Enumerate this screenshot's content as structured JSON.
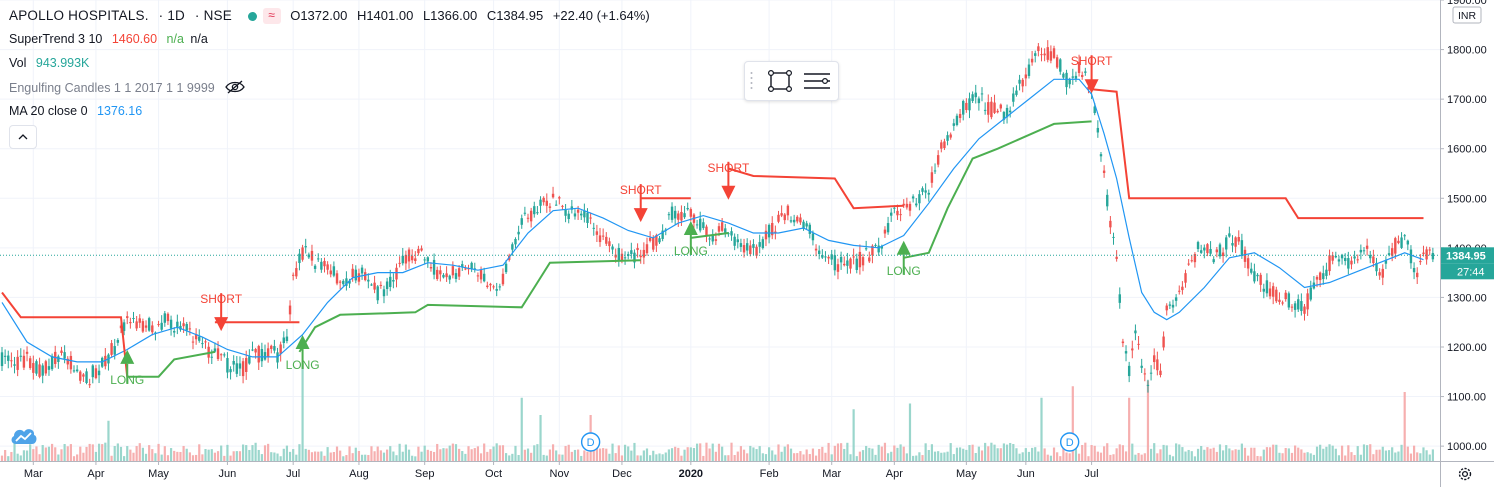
{
  "header": {
    "symbol": "APOLLO HOSPITALS.",
    "interval": "1D",
    "exchange": "NSE",
    "change_badge": "≈",
    "open": "O1372.00",
    "high": "H1401.00",
    "low": "L1366.00",
    "close": "C1384.95",
    "change": "+22.40 (+1.64%)"
  },
  "indicators": {
    "supertrend": {
      "label": "SuperTrend 3 10",
      "value": "1460.60",
      "na1": "n/a",
      "na2": "n/a"
    },
    "volume": {
      "label": "Vol",
      "value": "943.993K"
    },
    "engulfing": {
      "label": "Engulfing Candles 1 1 2017 1 1 9999"
    },
    "ma": {
      "label": "MA 20 close 0",
      "value": "1376.16"
    }
  },
  "currency": "INR",
  "price_badge": {
    "value": "1384.95",
    "countdown": "27:44"
  },
  "icons": {
    "eye": "eye-crossed-icon",
    "logo": "cloud-logo-icon",
    "settings": "gear-icon",
    "rect": "rectangle-tool-icon",
    "lines": "lines-tool-icon"
  },
  "colors": {
    "up": "#26a69a",
    "down": "#ef5350",
    "supertrend_up": "#4caf50",
    "supertrend_down": "#f44336",
    "ma": "#2196f3",
    "vol_up": "#8fd1c7",
    "vol_down": "#f5a6a6"
  },
  "chart_data": {
    "type": "candlestick",
    "title": "APOLLO HOSPITALS. · 1D · NSE",
    "ylim": [
      970,
      1900
    ],
    "y_ticks": [
      1000,
      1100,
      1200,
      1300,
      1400,
      1500,
      1600,
      1700,
      1800,
      1900
    ],
    "x_ticks": [
      "Mar",
      "Apr",
      "May",
      "Jun",
      "Jul",
      "Aug",
      "Sep",
      "Oct",
      "Nov",
      "Dec",
      "2020",
      "Feb",
      "Mar",
      "Apr",
      "May",
      "Jun",
      "Jul"
    ],
    "close_path": [
      [
        0,
        1175
      ],
      [
        4,
        1160
      ],
      [
        8,
        1175
      ],
      [
        12,
        1150
      ],
      [
        16,
        1170
      ],
      [
        20,
        1190
      ],
      [
        24,
        1150
      ],
      [
        28,
        1140
      ],
      [
        32,
        1165
      ],
      [
        36,
        1200
      ],
      [
        40,
        1260
      ],
      [
        44,
        1250
      ],
      [
        48,
        1240
      ],
      [
        52,
        1255
      ],
      [
        56,
        1240
      ],
      [
        60,
        1230
      ],
      [
        64,
        1200
      ],
      [
        68,
        1190
      ],
      [
        72,
        1165
      ],
      [
        76,
        1150
      ],
      [
        80,
        1180
      ],
      [
        84,
        1190
      ],
      [
        88,
        1185
      ],
      [
        91,
        1220
      ],
      [
        93,
        1330
      ],
      [
        95,
        1380
      ],
      [
        97,
        1400
      ],
      [
        100,
        1370
      ],
      [
        104,
        1370
      ],
      [
        108,
        1330
      ],
      [
        112,
        1345
      ],
      [
        116,
        1350
      ],
      [
        120,
        1310
      ],
      [
        124,
        1325
      ],
      [
        128,
        1370
      ],
      [
        132,
        1390
      ],
      [
        136,
        1380
      ],
      [
        140,
        1345
      ],
      [
        144,
        1350
      ],
      [
        148,
        1365
      ],
      [
        152,
        1360
      ],
      [
        156,
        1320
      ],
      [
        160,
        1340
      ],
      [
        163,
        1400
      ],
      [
        166,
        1460
      ],
      [
        170,
        1470
      ],
      [
        174,
        1500
      ],
      [
        178,
        1490
      ],
      [
        182,
        1470
      ],
      [
        186,
        1465
      ],
      [
        190,
        1430
      ],
      [
        194,
        1400
      ],
      [
        198,
        1380
      ],
      [
        202,
        1380
      ],
      [
        206,
        1400
      ],
      [
        210,
        1420
      ],
      [
        214,
        1470
      ],
      [
        218,
        1470
      ],
      [
        222,
        1460
      ],
      [
        226,
        1420
      ],
      [
        230,
        1440
      ],
      [
        234,
        1420
      ],
      [
        238,
        1395
      ],
      [
        242,
        1400
      ],
      [
        246,
        1440
      ],
      [
        250,
        1470
      ],
      [
        254,
        1465
      ],
      [
        258,
        1440
      ],
      [
        262,
        1380
      ],
      [
        266,
        1370
      ],
      [
        270,
        1360
      ],
      [
        274,
        1375
      ],
      [
        278,
        1390
      ],
      [
        282,
        1420
      ],
      [
        284,
        1470
      ],
      [
        288,
        1480
      ],
      [
        292,
        1495
      ],
      [
        296,
        1520
      ],
      [
        300,
        1600
      ],
      [
        304,
        1650
      ],
      [
        308,
        1690
      ],
      [
        312,
        1700
      ],
      [
        316,
        1680
      ],
      [
        320,
        1670
      ],
      [
        324,
        1710
      ],
      [
        328,
        1760
      ],
      [
        332,
        1800
      ],
      [
        336,
        1790
      ],
      [
        340,
        1740
      ],
      [
        344,
        1760
      ],
      [
        348,
        1720
      ],
      [
        350,
        1640
      ],
      [
        352,
        1540
      ],
      [
        354,
        1450
      ],
      [
        356,
        1380
      ],
      [
        358,
        1200
      ],
      [
        360,
        1150
      ],
      [
        362,
        1230
      ],
      [
        364,
        1150
      ],
      [
        366,
        1110
      ],
      [
        368,
        1180
      ],
      [
        370,
        1140
      ],
      [
        372,
        1270
      ],
      [
        376,
        1310
      ],
      [
        380,
        1380
      ],
      [
        384,
        1410
      ],
      [
        388,
        1380
      ],
      [
        392,
        1420
      ],
      [
        396,
        1400
      ],
      [
        400,
        1340
      ],
      [
        404,
        1320
      ],
      [
        408,
        1300
      ],
      [
        412,
        1290
      ],
      [
        416,
        1280
      ],
      [
        420,
        1330
      ],
      [
        424,
        1370
      ],
      [
        428,
        1380
      ],
      [
        432,
        1370
      ],
      [
        436,
        1400
      ],
      [
        440,
        1340
      ],
      [
        444,
        1400
      ],
      [
        448,
        1420
      ],
      [
        452,
        1350
      ],
      [
        454,
        1385
      ]
    ],
    "ma20_path": [
      [
        0,
        1290
      ],
      [
        8,
        1210
      ],
      [
        16,
        1180
      ],
      [
        24,
        1170
      ],
      [
        32,
        1170
      ],
      [
        40,
        1195
      ],
      [
        48,
        1225
      ],
      [
        56,
        1240
      ],
      [
        64,
        1220
      ],
      [
        72,
        1195
      ],
      [
        80,
        1180
      ],
      [
        88,
        1180
      ],
      [
        96,
        1225
      ],
      [
        104,
        1290
      ],
      [
        112,
        1340
      ],
      [
        120,
        1350
      ],
      [
        128,
        1350
      ],
      [
        136,
        1370
      ],
      [
        144,
        1365
      ],
      [
        152,
        1355
      ],
      [
        160,
        1365
      ],
      [
        168,
        1430
      ],
      [
        176,
        1475
      ],
      [
        184,
        1480
      ],
      [
        192,
        1460
      ],
      [
        200,
        1435
      ],
      [
        208,
        1420
      ],
      [
        216,
        1450
      ],
      [
        224,
        1465
      ],
      [
        232,
        1450
      ],
      [
        240,
        1430
      ],
      [
        248,
        1430
      ],
      [
        256,
        1440
      ],
      [
        264,
        1415
      ],
      [
        272,
        1405
      ],
      [
        280,
        1400
      ],
      [
        288,
        1425
      ],
      [
        296,
        1490
      ],
      [
        304,
        1560
      ],
      [
        312,
        1620
      ],
      [
        320,
        1660
      ],
      [
        328,
        1700
      ],
      [
        336,
        1740
      ],
      [
        344,
        1740
      ],
      [
        348,
        1710
      ],
      [
        352,
        1630
      ],
      [
        356,
        1540
      ],
      [
        360,
        1420
      ],
      [
        364,
        1310
      ],
      [
        368,
        1270
      ],
      [
        372,
        1255
      ],
      [
        376,
        1270
      ],
      [
        384,
        1320
      ],
      [
        392,
        1380
      ],
      [
        400,
        1390
      ],
      [
        408,
        1360
      ],
      [
        416,
        1320
      ],
      [
        424,
        1330
      ],
      [
        432,
        1350
      ],
      [
        440,
        1370
      ],
      [
        448,
        1390
      ],
      [
        454,
        1376
      ]
    ],
    "supertrend": [
      {
        "trend": "down",
        "points": [
          [
            0,
            1310
          ],
          [
            6,
            1260
          ],
          [
            38,
            1260
          ],
          [
            40,
            1140
          ]
        ]
      },
      {
        "trend": "up",
        "points": [
          [
            40,
            1140
          ],
          [
            50,
            1140
          ],
          [
            55,
            1175
          ],
          [
            68,
            1190
          ]
        ]
      },
      {
        "trend": "down",
        "points": [
          [
            68,
            1250
          ],
          [
            95,
            1250
          ]
        ]
      },
      {
        "trend": "up",
        "points": [
          [
            95,
            1190
          ],
          [
            100,
            1240
          ],
          [
            108,
            1265
          ],
          [
            132,
            1270
          ],
          [
            136,
            1285
          ],
          [
            166,
            1280
          ],
          [
            170,
            1320
          ],
          [
            175,
            1370
          ],
          [
            204,
            1375
          ]
        ]
      },
      {
        "trend": "down",
        "points": [
          [
            204,
            1500
          ],
          [
            220,
            1500
          ]
        ]
      },
      {
        "trend": "up",
        "points": [
          [
            220,
            1420
          ],
          [
            232,
            1430
          ]
        ]
      },
      {
        "trend": "down",
        "points": [
          [
            232,
            1560
          ],
          [
            240,
            1545
          ],
          [
            266,
            1540
          ],
          [
            272,
            1480
          ],
          [
            288,
            1485
          ]
        ]
      },
      {
        "trend": "up",
        "points": [
          [
            288,
            1380
          ],
          [
            296,
            1390
          ],
          [
            302,
            1480
          ],
          [
            306,
            1530
          ],
          [
            310,
            1580
          ],
          [
            318,
            1600
          ],
          [
            336,
            1650
          ],
          [
            348,
            1655
          ]
        ]
      },
      {
        "trend": "down",
        "points": [
          [
            348,
            1720
          ],
          [
            356,
            1715
          ],
          [
            360,
            1500
          ],
          [
            410,
            1500
          ],
          [
            414,
            1460
          ],
          [
            454,
            1460
          ]
        ]
      }
    ],
    "signals": [
      {
        "label": "LONG",
        "index": 40,
        "price": 1170,
        "dir": "up"
      },
      {
        "label": "SHORT",
        "index": 70,
        "price": 1240,
        "dir": "down"
      },
      {
        "label": "LONG",
        "index": 96,
        "price": 1200,
        "dir": "up"
      },
      {
        "label": "SHORT",
        "index": 204,
        "price": 1460,
        "dir": "down"
      },
      {
        "label": "LONG",
        "index": 220,
        "price": 1430,
        "dir": "up"
      },
      {
        "label": "SHORT",
        "index": 232,
        "price": 1505,
        "dir": "down"
      },
      {
        "label": "LONG",
        "index": 288,
        "price": 1390,
        "dir": "up"
      },
      {
        "label": "SHORT",
        "index": 348,
        "price": 1720,
        "dir": "down"
      }
    ],
    "dividends": [
      {
        "index": 188,
        "label": "D"
      },
      {
        "index": 341,
        "label": "D"
      }
    ],
    "volume_spikes": [
      [
        34,
        0.35
      ],
      [
        96,
        0.85
      ],
      [
        166,
        0.55
      ],
      [
        172,
        0.4
      ],
      [
        188,
        0.4
      ],
      [
        272,
        0.45
      ],
      [
        290,
        0.5
      ],
      [
        332,
        0.55
      ],
      [
        342,
        0.65
      ],
      [
        360,
        0.55
      ],
      [
        366,
        0.7
      ],
      [
        448,
        0.6
      ]
    ],
    "last_price": 1384.95
  }
}
